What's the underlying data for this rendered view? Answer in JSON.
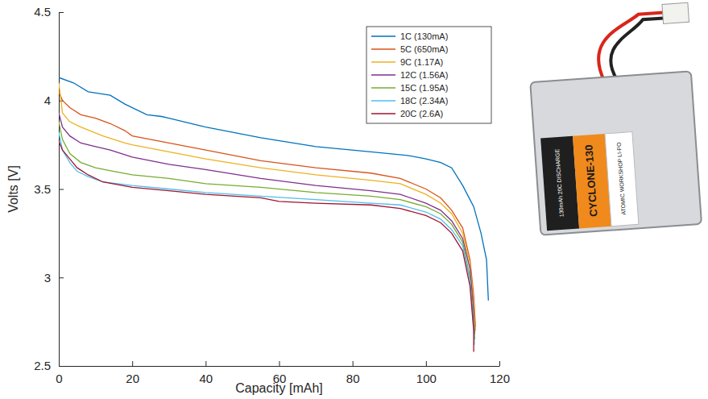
{
  "chart_data": {
    "type": "line",
    "x_label": "Capacity [mAh]",
    "y_label": "Volts [V]",
    "xlim": [
      0,
      120
    ],
    "xticks": [
      0,
      20,
      40,
      60,
      80,
      100,
      120
    ],
    "ylim": [
      2.5,
      4.5
    ],
    "yticks": [
      2.5,
      3,
      3.5,
      4,
      4.5
    ],
    "grid": false,
    "legend": "upper right",
    "series": [
      {
        "name": "1C (130mA)",
        "color": "#0072bd",
        "x": [
          0,
          4,
          8,
          14,
          18,
          24,
          28,
          30,
          40,
          55,
          70,
          85,
          95,
          100,
          104,
          107,
          110,
          113,
          115,
          116.5,
          117
        ],
        "values": [
          4.13,
          4.1,
          4.05,
          4.03,
          3.98,
          3.92,
          3.91,
          3.9,
          3.85,
          3.79,
          3.74,
          3.71,
          3.69,
          3.67,
          3.65,
          3.62,
          3.52,
          3.4,
          3.25,
          3.1,
          2.87
        ]
      },
      {
        "name": "5C (650mA)",
        "color": "#d95319",
        "x": [
          0,
          1,
          3,
          6,
          10,
          14,
          18,
          20,
          30,
          40,
          55,
          70,
          85,
          93,
          100,
          104,
          107,
          110,
          112,
          113,
          113.5
        ],
        "values": [
          4.05,
          4.0,
          3.96,
          3.92,
          3.9,
          3.87,
          3.83,
          3.8,
          3.76,
          3.72,
          3.66,
          3.62,
          3.59,
          3.56,
          3.5,
          3.45,
          3.38,
          3.28,
          3.1,
          2.9,
          2.72
        ]
      },
      {
        "name": "9C (1.17A)",
        "color": "#edb120",
        "x": [
          0,
          1,
          3,
          6,
          12,
          18,
          20,
          30,
          40,
          55,
          70,
          85,
          93,
          100,
          104,
          107,
          110,
          112,
          113,
          113.5
        ],
        "values": [
          4.1,
          3.93,
          3.88,
          3.85,
          3.8,
          3.76,
          3.75,
          3.71,
          3.67,
          3.62,
          3.58,
          3.55,
          3.53,
          3.47,
          3.42,
          3.36,
          3.25,
          3.08,
          2.85,
          2.7
        ]
      },
      {
        "name": "12C (1.56A)",
        "color": "#7e2f8e",
        "x": [
          0,
          1,
          3,
          6,
          10,
          14,
          20,
          30,
          40,
          55,
          70,
          85,
          93,
          100,
          104,
          107,
          110,
          112,
          113,
          113.3
        ],
        "values": [
          3.93,
          3.85,
          3.8,
          3.76,
          3.74,
          3.72,
          3.68,
          3.64,
          3.61,
          3.56,
          3.52,
          3.49,
          3.47,
          3.42,
          3.38,
          3.32,
          3.22,
          3.05,
          2.8,
          2.68
        ]
      },
      {
        "name": "15C (1.95A)",
        "color": "#77ac30",
        "x": [
          0,
          1,
          3,
          6,
          10,
          15,
          20,
          30,
          40,
          55,
          70,
          85,
          93,
          100,
          104,
          107,
          110,
          112,
          113,
          113.3
        ],
        "values": [
          3.88,
          3.78,
          3.7,
          3.65,
          3.62,
          3.6,
          3.58,
          3.56,
          3.53,
          3.51,
          3.48,
          3.46,
          3.44,
          3.4,
          3.36,
          3.3,
          3.2,
          3.0,
          2.75,
          2.65
        ]
      },
      {
        "name": "18C (2.34A)",
        "color": "#4dbeee",
        "x": [
          0,
          1,
          3,
          5,
          8,
          12,
          20,
          30,
          40,
          55,
          70,
          85,
          93,
          100,
          104,
          107,
          110,
          112,
          113,
          113.2
        ],
        "values": [
          3.82,
          3.72,
          3.65,
          3.6,
          3.57,
          3.54,
          3.52,
          3.5,
          3.48,
          3.46,
          3.44,
          3.42,
          3.41,
          3.37,
          3.33,
          3.27,
          3.18,
          2.98,
          2.72,
          2.62
        ]
      },
      {
        "name": "20C (2.6A)",
        "color": "#a2142f",
        "x": [
          0,
          1,
          3,
          5,
          8,
          12,
          20,
          30,
          40,
          55,
          60,
          70,
          85,
          93,
          100,
          104,
          107,
          110,
          112,
          113,
          113
        ],
        "values": [
          3.77,
          3.72,
          3.67,
          3.62,
          3.58,
          3.54,
          3.51,
          3.49,
          3.47,
          3.45,
          3.43,
          3.42,
          3.41,
          3.39,
          3.35,
          3.31,
          3.25,
          3.15,
          2.95,
          2.7,
          2.58
        ]
      }
    ]
  },
  "photo": {
    "texts": [
      "CYCLONE-130",
      "ATOMIC WORKSHOP LI-PO",
      "130mAh 20C DISCHARGE"
    ]
  }
}
